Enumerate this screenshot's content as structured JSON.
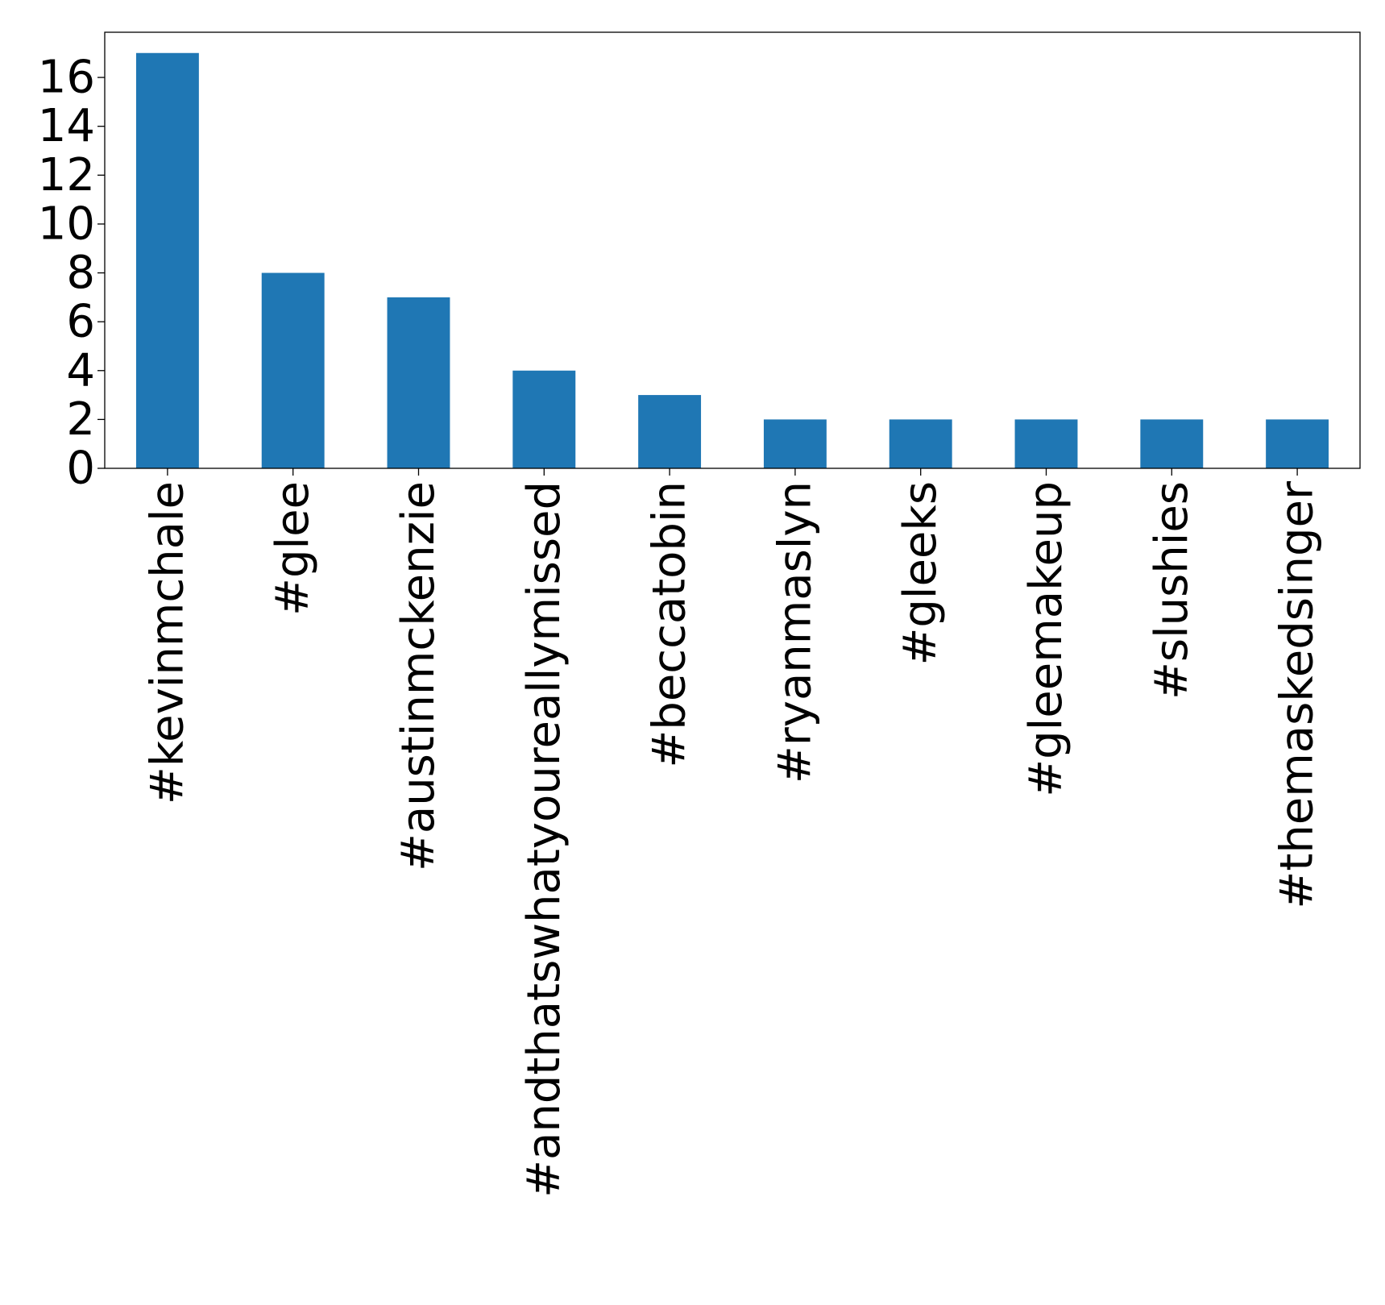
{
  "chart_data": {
    "type": "bar",
    "title": "",
    "xlabel": "",
    "ylabel": "",
    "categories": [
      "#kevinmchale",
      "#glee",
      "#austinmckenzie",
      "#andthatswhatyoureallymissed",
      "#beccatobin",
      "#ryanmaslyn",
      "#gleeks",
      "#gleemakeup",
      "#slushies",
      "#themaskedsinger"
    ],
    "values": [
      17,
      8,
      7,
      4,
      3,
      2,
      2,
      2,
      2,
      2
    ],
    "yticks": [
      "0",
      "2",
      "4",
      "6",
      "8",
      "10",
      "12",
      "14",
      "16"
    ],
    "ylim": [
      0,
      17.85
    ],
    "grid": false,
    "legend": "none",
    "bar_color": "#1f77b4"
  }
}
